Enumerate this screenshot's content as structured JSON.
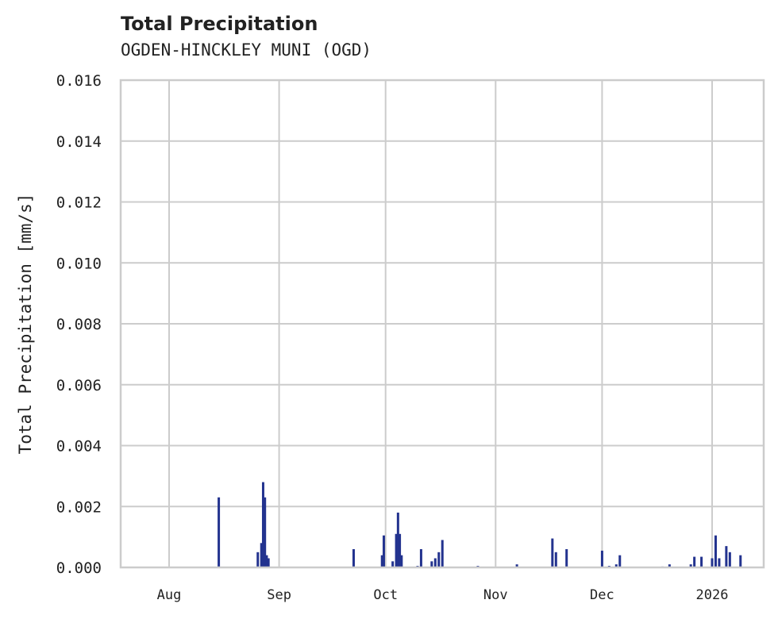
{
  "chart_data": {
    "type": "bar",
    "title": "Total Precipitation",
    "subtitle": "OGDEN-HINCKLEY MUNI (OGD)",
    "xlabel": "",
    "ylabel": "Total Precipitation [mm/s]",
    "ylim": [
      0,
      0.016
    ],
    "yticks": [
      "0.000",
      "0.002",
      "0.004",
      "0.006",
      "0.008",
      "0.010",
      "0.012",
      "0.014",
      "0.016"
    ],
    "xticks": [
      "Aug",
      "Sep",
      "Oct",
      "Nov",
      "Dec",
      "2026"
    ],
    "grid": true,
    "legend": null,
    "color": "#23338f",
    "series": [
      {
        "name": "Total Precipitation",
        "points": [
          {
            "x": "2025-08-15",
            "y": 0.0023
          },
          {
            "x": "2025-08-26",
            "y": 0.0005
          },
          {
            "x": "2025-08-27",
            "y": 0.0008
          },
          {
            "x": "2025-08-27T12",
            "y": 0.0028
          },
          {
            "x": "2025-08-28",
            "y": 0.0023
          },
          {
            "x": "2025-08-28T12",
            "y": 0.0004
          },
          {
            "x": "2025-08-29",
            "y": 0.0003
          },
          {
            "x": "2025-09-22",
            "y": 0.0006
          },
          {
            "x": "2025-09-30",
            "y": 0.0004
          },
          {
            "x": "2025-09-30T12",
            "y": 0.00105
          },
          {
            "x": "2025-10-03",
            "y": 0.0002
          },
          {
            "x": "2025-10-04",
            "y": 0.0011
          },
          {
            "x": "2025-10-04T12",
            "y": 0.0018
          },
          {
            "x": "2025-10-05",
            "y": 0.0011
          },
          {
            "x": "2025-10-05T12",
            "y": 0.0004
          },
          {
            "x": "2025-10-10",
            "y": 5e-05
          },
          {
            "x": "2025-10-11",
            "y": 0.0006
          },
          {
            "x": "2025-10-14",
            "y": 0.0002
          },
          {
            "x": "2025-10-15",
            "y": 0.0003
          },
          {
            "x": "2025-10-16",
            "y": 0.0005
          },
          {
            "x": "2025-10-17",
            "y": 0.0009
          },
          {
            "x": "2025-10-27",
            "y": 5e-05
          },
          {
            "x": "2025-11-07",
            "y": 0.0001
          },
          {
            "x": "2025-11-17",
            "y": 0.00095
          },
          {
            "x": "2025-11-18",
            "y": 0.0005
          },
          {
            "x": "2025-11-21",
            "y": 0.0006
          },
          {
            "x": "2025-12-01",
            "y": 0.00055
          },
          {
            "x": "2025-12-03",
            "y": 5e-05
          },
          {
            "x": "2025-12-05",
            "y": 0.0001
          },
          {
            "x": "2025-12-06",
            "y": 0.0004
          },
          {
            "x": "2025-12-18",
            "y": 3e-05
          },
          {
            "x": "2025-12-20",
            "y": 0.0001
          },
          {
            "x": "2025-12-26",
            "y": 0.0001
          },
          {
            "x": "2025-12-27",
            "y": 0.00035
          },
          {
            "x": "2025-12-29",
            "y": 0.00035
          },
          {
            "x": "2026-01-01",
            "y": 0.0003
          },
          {
            "x": "2026-01-02",
            "y": 0.00105
          },
          {
            "x": "2026-01-03",
            "y": 0.0003
          },
          {
            "x": "2026-01-05",
            "y": 0.0007
          },
          {
            "x": "2026-01-06",
            "y": 0.0005
          },
          {
            "x": "2026-01-09",
            "y": 0.0004
          }
        ]
      }
    ]
  },
  "labels": {
    "title": "Total Precipitation",
    "subtitle": "OGDEN-HINCKLEY MUNI (OGD)",
    "ylabel": "Total Precipitation [mm/s]"
  }
}
